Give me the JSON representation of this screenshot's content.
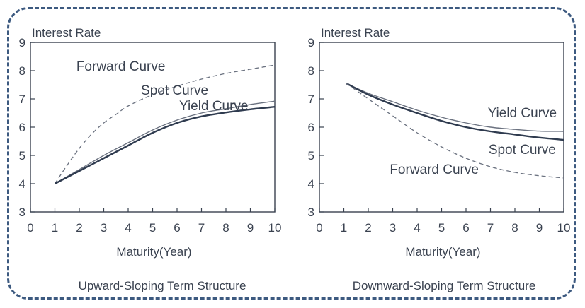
{
  "colors": {
    "frame": "#3d5a80",
    "axis": "#3a4250",
    "yield_curve": "#2f3b4f",
    "spot_curve": "#6b7280",
    "forward_curve": "#6b7280",
    "text": "#3a4250"
  },
  "chart_data": [
    {
      "type": "line",
      "title": "Upward-Sloping Term Structure",
      "ylabel": "Interest Rate",
      "xlabel": "Maturity(Year)",
      "xlim": [
        0,
        10
      ],
      "ylim": [
        3,
        9
      ],
      "xticks": [
        "0",
        "1",
        "2",
        "3",
        "4",
        "5",
        "6",
        "7",
        "8",
        "9",
        "10"
      ],
      "yticks": [
        "3",
        "4",
        "5",
        "6",
        "7",
        "8",
        "9"
      ],
      "grid": false,
      "series": [
        {
          "name": "Forward Curve",
          "style": "dashed",
          "points": [
            [
              1,
              4.0
            ],
            [
              1.5,
              4.65
            ],
            [
              2,
              5.25
            ],
            [
              2.5,
              5.75
            ],
            [
              3,
              6.15
            ],
            [
              3.5,
              6.45
            ],
            [
              4,
              6.75
            ],
            [
              5,
              7.15
            ],
            [
              6,
              7.45
            ],
            [
              7,
              7.7
            ],
            [
              8,
              7.9
            ],
            [
              9,
              8.05
            ],
            [
              10,
              8.2
            ]
          ]
        },
        {
          "name": "Spot Curve",
          "style": "thin",
          "points": [
            [
              1,
              4.0
            ],
            [
              2,
              4.5
            ],
            [
              3,
              5.0
            ],
            [
              4,
              5.45
            ],
            [
              5,
              5.9
            ],
            [
              6,
              6.25
            ],
            [
              7,
              6.5
            ],
            [
              8,
              6.65
            ],
            [
              9,
              6.8
            ],
            [
              10,
              6.92
            ]
          ]
        },
        {
          "name": "Yield Curve",
          "style": "thick",
          "points": [
            [
              1,
              4.0
            ],
            [
              2,
              4.45
            ],
            [
              3,
              4.9
            ],
            [
              4,
              5.35
            ],
            [
              5,
              5.8
            ],
            [
              6,
              6.15
            ],
            [
              7,
              6.38
            ],
            [
              8,
              6.52
            ],
            [
              9,
              6.63
            ],
            [
              10,
              6.72
            ]
          ]
        }
      ],
      "annotations": [
        {
          "text": "Forward Curve",
          "x": 3.7,
          "y": 8.0
        },
        {
          "text": "Spot Curve",
          "x": 5.9,
          "y": 7.15
        },
        {
          "text": "Yield Curve",
          "x": 7.5,
          "y": 6.6
        }
      ]
    },
    {
      "type": "line",
      "title": "Downward-Sloping Term Structure",
      "ylabel": "Interest Rate",
      "xlabel": "Maturity(Year)",
      "xlim": [
        0,
        10
      ],
      "ylim": [
        3,
        9
      ],
      "xticks": [
        "0",
        "1",
        "2",
        "3",
        "4",
        "5",
        "6",
        "7",
        "8",
        "9",
        "10"
      ],
      "yticks": [
        "3",
        "4",
        "5",
        "6",
        "7",
        "8",
        "9"
      ],
      "grid": false,
      "series": [
        {
          "name": "Yield Curve",
          "style": "thin",
          "points": [
            [
              1.1,
              7.55
            ],
            [
              2,
              7.2
            ],
            [
              3,
              6.9
            ],
            [
              4,
              6.6
            ],
            [
              5,
              6.35
            ],
            [
              6,
              6.15
            ],
            [
              7,
              6.0
            ],
            [
              8,
              5.92
            ],
            [
              9,
              5.86
            ],
            [
              10,
              5.85
            ]
          ]
        },
        {
          "name": "Spot Curve",
          "style": "thick",
          "points": [
            [
              1.1,
              7.55
            ],
            [
              2,
              7.15
            ],
            [
              3,
              6.8
            ],
            [
              4,
              6.5
            ],
            [
              5,
              6.22
            ],
            [
              6,
              6.0
            ],
            [
              7,
              5.85
            ],
            [
              8,
              5.74
            ],
            [
              9,
              5.63
            ],
            [
              10,
              5.55
            ]
          ]
        },
        {
          "name": "Forward Curve",
          "style": "dashed",
          "points": [
            [
              1.1,
              7.55
            ],
            [
              2,
              7.0
            ],
            [
              3,
              6.4
            ],
            [
              4,
              5.8
            ],
            [
              5,
              5.3
            ],
            [
              6,
              4.9
            ],
            [
              7,
              4.6
            ],
            [
              8,
              4.4
            ],
            [
              9,
              4.28
            ],
            [
              10,
              4.2
            ]
          ]
        }
      ],
      "annotations": [
        {
          "text": "Yield Curve",
          "x": 8.3,
          "y": 6.35
        },
        {
          "text": "Spot Curve",
          "x": 8.3,
          "y": 5.05
        },
        {
          "text": "Forward Curve",
          "x": 4.7,
          "y": 4.35
        }
      ]
    }
  ]
}
